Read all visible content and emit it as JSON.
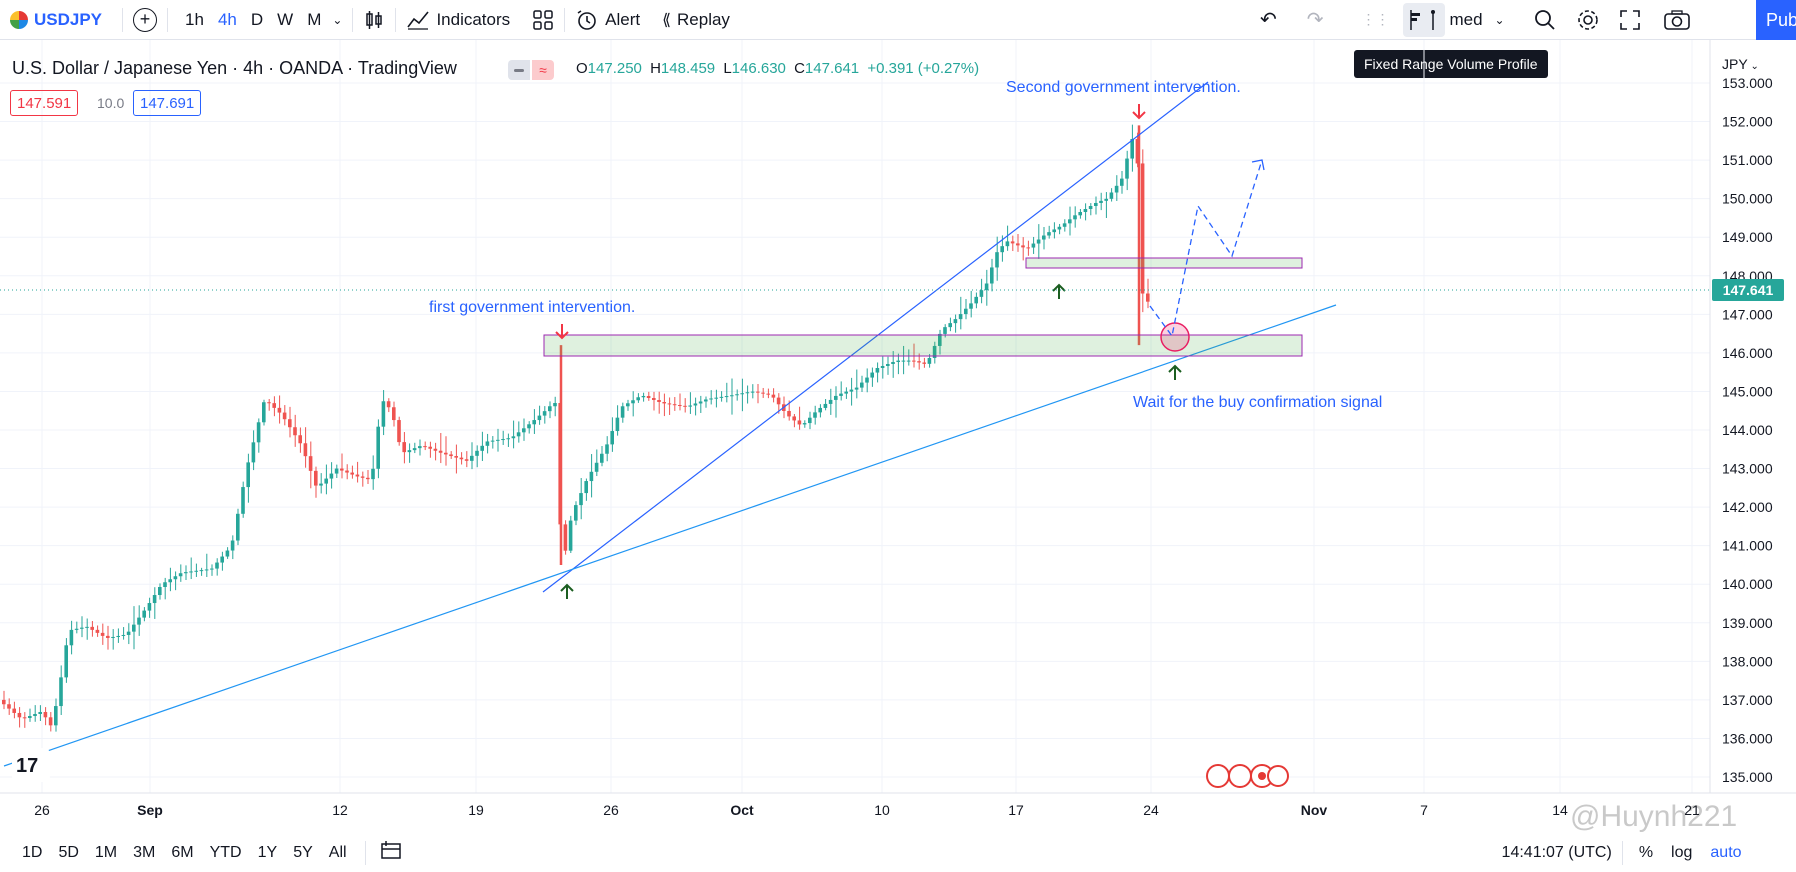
{
  "toolbar": {
    "symbol": "USDJPY",
    "timeframes": [
      "1h",
      "4h",
      "D",
      "W",
      "M"
    ],
    "active_timeframe": "4h",
    "indicators_label": "Indicators",
    "alert_label": "Alert",
    "replay_label": "Replay",
    "layout_label": "med",
    "publish_label": "Publish",
    "tooltip": "Fixed Range Volume Profile"
  },
  "legend": {
    "title": "U.S. Dollar / Japanese Yen · 4h · OANDA · TradingView",
    "o_label": "O",
    "o": "147.250",
    "h_label": "H",
    "h": "148.459",
    "l_label": "L",
    "l": "146.630",
    "c_label": "C",
    "c": "147.641",
    "change": "+0.391 (+0.27%)",
    "bid": "147.591",
    "spread": "10.0",
    "ask": "147.691"
  },
  "price_axis": {
    "currency": "JPY",
    "current_price": "147.641",
    "labels": [
      "135.000",
      "136.000",
      "137.000",
      "138.000",
      "139.000",
      "140.000",
      "141.000",
      "142.000",
      "143.000",
      "144.000",
      "145.000",
      "146.000",
      "147.000",
      "148.000",
      "149.000",
      "150.000",
      "151.000",
      "152.000",
      "153.000"
    ]
  },
  "time_axis": {
    "labels": [
      "26",
      "Sep",
      "12",
      "19",
      "26",
      "Oct",
      "10",
      "17",
      "24",
      "Nov",
      "7",
      "14",
      "21"
    ]
  },
  "annotations": {
    "first": "first government intervention.",
    "second": "Second government intervention.",
    "wait": "Wait for the buy confirmation signal"
  },
  "bottom": {
    "ranges": [
      "1D",
      "5D",
      "1M",
      "3M",
      "6M",
      "YTD",
      "1Y",
      "5Y",
      "All"
    ],
    "time": "14:41:07 (UTC)",
    "pct": "%",
    "log": "log",
    "auto": "auto"
  },
  "watermark": "@Huynh221",
  "colors": {
    "accent": "#2962ff",
    "up": "#26a69a",
    "down": "#ef5350",
    "trend": "#2962ff",
    "zone": "#9c27b0"
  }
}
